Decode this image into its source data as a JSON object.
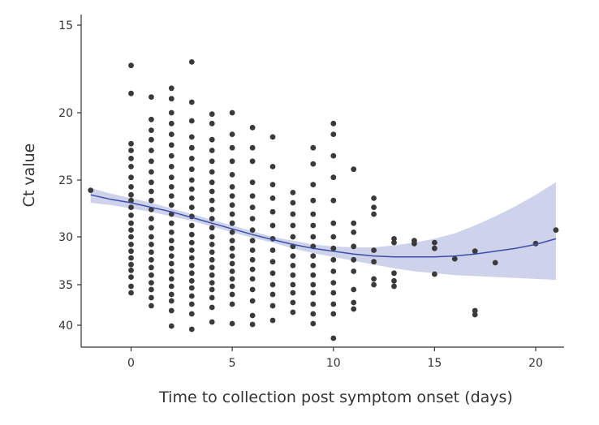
{
  "chart_data": {
    "type": "scatter",
    "xlabel": "Time to collection post symptom onset (days)",
    "ylabel": "Ct value",
    "xlim": [
      -2.5,
      21.5
    ],
    "x_ticks": [
      0,
      5,
      10,
      15,
      20
    ],
    "y_ticks": [
      15,
      20,
      25,
      30,
      35,
      40
    ],
    "y_tick_labels": [
      "15",
      "20",
      "25",
      "30",
      "35",
      "40"
    ],
    "y_tick_pixel_scale_note": "",
    "colors": {
      "points": "#3a3a3a",
      "line": "#3b4fa8",
      "band": "#c9cde8",
      "axis": "#333333"
    },
    "points": [
      {
        "x": -2,
        "y": 25.9
      },
      {
        "x": 0,
        "y": 17.3
      },
      {
        "x": 0,
        "y": 18.9
      },
      {
        "x": 0,
        "y": 22.3
      },
      {
        "x": 0,
        "y": 22.8
      },
      {
        "x": 0,
        "y": 23.4
      },
      {
        "x": 0,
        "y": 24.0
      },
      {
        "x": 0,
        "y": 24.8
      },
      {
        "x": 0,
        "y": 25.6
      },
      {
        "x": 0,
        "y": 26.3
      },
      {
        "x": 0,
        "y": 26.8
      },
      {
        "x": 0,
        "y": 27.4
      },
      {
        "x": 0,
        "y": 28.1
      },
      {
        "x": 0,
        "y": 28.8
      },
      {
        "x": 0,
        "y": 29.4
      },
      {
        "x": 0,
        "y": 30.0
      },
      {
        "x": 0,
        "y": 30.8
      },
      {
        "x": 0,
        "y": 31.5
      },
      {
        "x": 0,
        "y": 32.2
      },
      {
        "x": 0,
        "y": 32.9
      },
      {
        "x": 0,
        "y": 33.5
      },
      {
        "x": 0,
        "y": 34.2
      },
      {
        "x": 0,
        "y": 35.2
      },
      {
        "x": 0,
        "y": 36.0
      },
      {
        "x": 1,
        "y": 19.1
      },
      {
        "x": 1,
        "y": 20.5
      },
      {
        "x": 1,
        "y": 21.3
      },
      {
        "x": 1,
        "y": 22.0
      },
      {
        "x": 1,
        "y": 22.8
      },
      {
        "x": 1,
        "y": 23.6
      },
      {
        "x": 1,
        "y": 24.4
      },
      {
        "x": 1,
        "y": 25.2
      },
      {
        "x": 1,
        "y": 26.0
      },
      {
        "x": 1,
        "y": 26.8
      },
      {
        "x": 1,
        "y": 27.6
      },
      {
        "x": 1,
        "y": 28.4
      },
      {
        "x": 1,
        "y": 29.2
      },
      {
        "x": 1,
        "y": 30.0
      },
      {
        "x": 1,
        "y": 30.8
      },
      {
        "x": 1,
        "y": 31.6
      },
      {
        "x": 1,
        "y": 32.4
      },
      {
        "x": 1,
        "y": 33.2
      },
      {
        "x": 1,
        "y": 34.0
      },
      {
        "x": 1,
        "y": 34.8
      },
      {
        "x": 1,
        "y": 35.6
      },
      {
        "x": 1,
        "y": 36.6
      },
      {
        "x": 1,
        "y": 37.6
      },
      {
        "x": 2,
        "y": 18.6
      },
      {
        "x": 2,
        "y": 19.2
      },
      {
        "x": 2,
        "y": 20.0
      },
      {
        "x": 2,
        "y": 20.8
      },
      {
        "x": 2,
        "y": 21.6
      },
      {
        "x": 2,
        "y": 22.4
      },
      {
        "x": 2,
        "y": 23.2
      },
      {
        "x": 2,
        "y": 24.0
      },
      {
        "x": 2,
        "y": 24.8
      },
      {
        "x": 2,
        "y": 25.6
      },
      {
        "x": 2,
        "y": 26.4
      },
      {
        "x": 2,
        "y": 27.2
      },
      {
        "x": 2,
        "y": 28.0
      },
      {
        "x": 2,
        "y": 28.8
      },
      {
        "x": 2,
        "y": 29.6
      },
      {
        "x": 2,
        "y": 30.4
      },
      {
        "x": 2,
        "y": 31.2
      },
      {
        "x": 2,
        "y": 32.0
      },
      {
        "x": 2,
        "y": 32.8
      },
      {
        "x": 2,
        "y": 33.6
      },
      {
        "x": 2,
        "y": 34.4
      },
      {
        "x": 2,
        "y": 35.2
      },
      {
        "x": 2,
        "y": 36.2
      },
      {
        "x": 2,
        "y": 37.0
      },
      {
        "x": 2,
        "y": 38.2
      },
      {
        "x": 2,
        "y": 40.1
      },
      {
        "x": 3,
        "y": 17.1
      },
      {
        "x": 3,
        "y": 19.4
      },
      {
        "x": 3,
        "y": 20.6
      },
      {
        "x": 3,
        "y": 21.8
      },
      {
        "x": 3,
        "y": 22.6
      },
      {
        "x": 3,
        "y": 23.4
      },
      {
        "x": 3,
        "y": 24.2
      },
      {
        "x": 3,
        "y": 25.0
      },
      {
        "x": 3,
        "y": 25.8
      },
      {
        "x": 3,
        "y": 26.6
      },
      {
        "x": 3,
        "y": 27.4
      },
      {
        "x": 3,
        "y": 28.2
      },
      {
        "x": 3,
        "y": 29.0
      },
      {
        "x": 3,
        "y": 29.8
      },
      {
        "x": 3,
        "y": 30.6
      },
      {
        "x": 3,
        "y": 31.4
      },
      {
        "x": 3,
        "y": 32.2
      },
      {
        "x": 3,
        "y": 33.0
      },
      {
        "x": 3,
        "y": 33.8
      },
      {
        "x": 3,
        "y": 34.6
      },
      {
        "x": 3,
        "y": 35.4
      },
      {
        "x": 3,
        "y": 36.4
      },
      {
        "x": 3,
        "y": 37.4
      },
      {
        "x": 3,
        "y": 38.6
      },
      {
        "x": 3,
        "y": 40.5
      },
      {
        "x": 4,
        "y": 20.1
      },
      {
        "x": 4,
        "y": 20.8
      },
      {
        "x": 4,
        "y": 22.0
      },
      {
        "x": 4,
        "y": 22.8
      },
      {
        "x": 4,
        "y": 23.6
      },
      {
        "x": 4,
        "y": 24.4
      },
      {
        "x": 4,
        "y": 25.2
      },
      {
        "x": 4,
        "y": 26.0
      },
      {
        "x": 4,
        "y": 26.8
      },
      {
        "x": 4,
        "y": 27.6
      },
      {
        "x": 4,
        "y": 28.4
      },
      {
        "x": 4,
        "y": 29.2
      },
      {
        "x": 4,
        "y": 30.0
      },
      {
        "x": 4,
        "y": 30.8
      },
      {
        "x": 4,
        "y": 31.6
      },
      {
        "x": 4,
        "y": 32.4
      },
      {
        "x": 4,
        "y": 33.2
      },
      {
        "x": 4,
        "y": 34.0
      },
      {
        "x": 4,
        "y": 34.8
      },
      {
        "x": 4,
        "y": 35.6
      },
      {
        "x": 4,
        "y": 36.6
      },
      {
        "x": 4,
        "y": 37.8
      },
      {
        "x": 4,
        "y": 39.6
      },
      {
        "x": 5,
        "y": 20.0
      },
      {
        "x": 5,
        "y": 21.6
      },
      {
        "x": 5,
        "y": 22.6
      },
      {
        "x": 5,
        "y": 23.6
      },
      {
        "x": 5,
        "y": 24.6
      },
      {
        "x": 5,
        "y": 25.6
      },
      {
        "x": 5,
        "y": 26.4
      },
      {
        "x": 5,
        "y": 27.2
      },
      {
        "x": 5,
        "y": 28.0
      },
      {
        "x": 5,
        "y": 28.8
      },
      {
        "x": 5,
        "y": 29.6
      },
      {
        "x": 5,
        "y": 30.4
      },
      {
        "x": 5,
        "y": 31.2
      },
      {
        "x": 5,
        "y": 32.0
      },
      {
        "x": 5,
        "y": 32.8
      },
      {
        "x": 5,
        "y": 33.6
      },
      {
        "x": 5,
        "y": 34.4
      },
      {
        "x": 5,
        "y": 35.2
      },
      {
        "x": 5,
        "y": 36.2
      },
      {
        "x": 5,
        "y": 37.4
      },
      {
        "x": 5,
        "y": 39.8
      },
      {
        "x": 6,
        "y": 21.1
      },
      {
        "x": 6,
        "y": 22.6
      },
      {
        "x": 6,
        "y": 23.6
      },
      {
        "x": 6,
        "y": 25.2
      },
      {
        "x": 6,
        "y": 26.4
      },
      {
        "x": 6,
        "y": 27.4
      },
      {
        "x": 6,
        "y": 28.4
      },
      {
        "x": 6,
        "y": 29.4
      },
      {
        "x": 6,
        "y": 30.4
      },
      {
        "x": 6,
        "y": 31.4
      },
      {
        "x": 6,
        "y": 32.4
      },
      {
        "x": 6,
        "y": 33.4
      },
      {
        "x": 6,
        "y": 34.4
      },
      {
        "x": 6,
        "y": 35.6
      },
      {
        "x": 6,
        "y": 37.0
      },
      {
        "x": 6,
        "y": 38.8
      },
      {
        "x": 6,
        "y": 39.9
      },
      {
        "x": 7,
        "y": 21.8
      },
      {
        "x": 7,
        "y": 24.0
      },
      {
        "x": 7,
        "y": 25.4
      },
      {
        "x": 7,
        "y": 26.6
      },
      {
        "x": 7,
        "y": 27.8
      },
      {
        "x": 7,
        "y": 29.0
      },
      {
        "x": 7,
        "y": 30.2
      },
      {
        "x": 7,
        "y": 31.4
      },
      {
        "x": 7,
        "y": 32.6
      },
      {
        "x": 7,
        "y": 33.8
      },
      {
        "x": 7,
        "y": 35.0
      },
      {
        "x": 7,
        "y": 36.2
      },
      {
        "x": 7,
        "y": 37.6
      },
      {
        "x": 7,
        "y": 39.4
      },
      {
        "x": 8,
        "y": 26.1
      },
      {
        "x": 8,
        "y": 27.0
      },
      {
        "x": 8,
        "y": 28.0
      },
      {
        "x": 8,
        "y": 29.0
      },
      {
        "x": 8,
        "y": 30.0
      },
      {
        "x": 8,
        "y": 31.0
      },
      {
        "x": 8,
        "y": 32.0
      },
      {
        "x": 8,
        "y": 33.0
      },
      {
        "x": 8,
        "y": 34.0
      },
      {
        "x": 8,
        "y": 35.0
      },
      {
        "x": 8,
        "y": 36.0
      },
      {
        "x": 8,
        "y": 37.2
      },
      {
        "x": 8,
        "y": 38.4
      },
      {
        "x": 9,
        "y": 22.6
      },
      {
        "x": 9,
        "y": 23.8
      },
      {
        "x": 9,
        "y": 25.4
      },
      {
        "x": 9,
        "y": 26.8
      },
      {
        "x": 9,
        "y": 28.0
      },
      {
        "x": 9,
        "y": 29.0
      },
      {
        "x": 9,
        "y": 30.0
      },
      {
        "x": 9,
        "y": 31.0
      },
      {
        "x": 9,
        "y": 32.0
      },
      {
        "x": 9,
        "y": 33.0
      },
      {
        "x": 9,
        "y": 34.0
      },
      {
        "x": 9,
        "y": 35.0
      },
      {
        "x": 9,
        "y": 36.0
      },
      {
        "x": 9,
        "y": 37.4
      },
      {
        "x": 9,
        "y": 38.6
      },
      {
        "x": 9,
        "y": 39.8
      },
      {
        "x": 10,
        "y": 20.8
      },
      {
        "x": 10,
        "y": 21.6
      },
      {
        "x": 10,
        "y": 23.2
      },
      {
        "x": 10,
        "y": 24.8
      },
      {
        "x": 10,
        "y": 26.8
      },
      {
        "x": 10,
        "y": 28.8
      },
      {
        "x": 10,
        "y": 30.0
      },
      {
        "x": 10,
        "y": 31.2
      },
      {
        "x": 10,
        "y": 32.4
      },
      {
        "x": 10,
        "y": 33.6
      },
      {
        "x": 10,
        "y": 34.8
      },
      {
        "x": 10,
        "y": 36.0
      },
      {
        "x": 10,
        "y": 37.4
      },
      {
        "x": 10,
        "y": 38.6
      },
      {
        "x": 10,
        "y": 41.6
      },
      {
        "x": 11,
        "y": 24.2
      },
      {
        "x": 11,
        "y": 28.8
      },
      {
        "x": 11,
        "y": 29.6
      },
      {
        "x": 11,
        "y": 31.0
      },
      {
        "x": 11,
        "y": 32.4
      },
      {
        "x": 11,
        "y": 33.6
      },
      {
        "x": 11,
        "y": 35.6
      },
      {
        "x": 11,
        "y": 37.2
      },
      {
        "x": 11,
        "y": 38.0
      },
      {
        "x": 12,
        "y": 26.6
      },
      {
        "x": 12,
        "y": 27.4
      },
      {
        "x": 12,
        "y": 28.0
      },
      {
        "x": 12,
        "y": 31.4
      },
      {
        "x": 12,
        "y": 32.6
      },
      {
        "x": 12,
        "y": 34.4
      },
      {
        "x": 12,
        "y": 35.0
      },
      {
        "x": 13,
        "y": 30.2
      },
      {
        "x": 13,
        "y": 30.6
      },
      {
        "x": 13,
        "y": 33.8
      },
      {
        "x": 13,
        "y": 34.6
      },
      {
        "x": 13,
        "y": 35.2
      },
      {
        "x": 14,
        "y": 30.4
      },
      {
        "x": 14,
        "y": 30.7
      },
      {
        "x": 15,
        "y": 30.6
      },
      {
        "x": 15,
        "y": 31.2
      },
      {
        "x": 15,
        "y": 33.9
      },
      {
        "x": 16,
        "y": 32.3
      },
      {
        "x": 17,
        "y": 31.5
      },
      {
        "x": 17,
        "y": 38.2
      },
      {
        "x": 17,
        "y": 38.7
      },
      {
        "x": 18,
        "y": 32.7
      },
      {
        "x": 20,
        "y": 30.7
      },
      {
        "x": 21,
        "y": 29.4
      }
    ],
    "smooth": {
      "x": [
        -2,
        -1,
        0,
        1,
        2,
        3,
        4,
        5,
        6,
        7,
        8,
        9,
        10,
        11,
        12,
        13,
        14,
        15,
        16,
        17,
        18,
        19,
        20,
        21
      ],
      "fit": [
        26.3,
        26.7,
        27.0,
        27.4,
        27.8,
        28.3,
        28.8,
        29.3,
        29.8,
        30.3,
        30.8,
        31.2,
        31.5,
        31.8,
        32.0,
        32.1,
        32.1,
        32.1,
        32.0,
        31.8,
        31.5,
        31.2,
        30.8,
        30.2
      ],
      "lower": [
        25.7,
        26.2,
        26.6,
        27.0,
        27.5,
        28.0,
        28.5,
        29.0,
        29.5,
        30.0,
        30.4,
        30.8,
        31.0,
        31.1,
        31.1,
        30.9,
        30.6,
        30.2,
        29.7,
        29.0,
        28.2,
        27.3,
        26.3,
        25.2
      ],
      "upper": [
        27.0,
        27.2,
        27.5,
        27.8,
        28.2,
        28.6,
        29.1,
        29.6,
        30.1,
        30.6,
        31.2,
        31.7,
        32.1,
        32.5,
        32.9,
        33.3,
        33.6,
        33.8,
        34.0,
        34.1,
        34.2,
        34.3,
        34.4,
        34.5
      ]
    }
  }
}
